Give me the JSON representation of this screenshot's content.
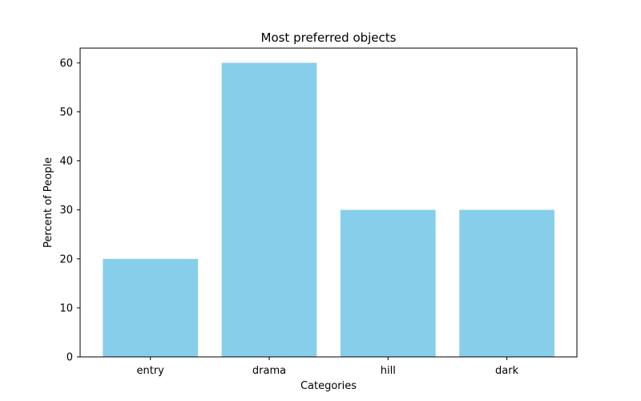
{
  "chart_data": {
    "type": "bar",
    "title": "Most preferred objects",
    "xlabel": "Categories",
    "ylabel": "Percent of People",
    "categories": [
      "entry",
      "drama",
      "hill",
      "dark"
    ],
    "values": [
      20,
      60,
      30,
      30
    ],
    "ylim": [
      0,
      63
    ],
    "yticks": [
      0,
      10,
      20,
      30,
      40,
      50,
      60
    ],
    "grid": false,
    "bar_color": "#87CEEB"
  }
}
